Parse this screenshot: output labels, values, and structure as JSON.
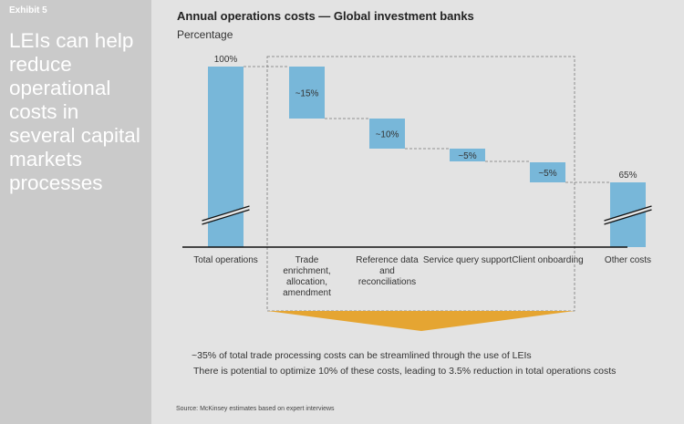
{
  "sidebar": {
    "exhibit": "Exhibit 5",
    "headline": "LEIs can help reduce operational costs in several capital markets processes"
  },
  "chart_data": {
    "type": "bar",
    "subtype": "waterfall",
    "title": "Annual operations costs — Global investment banks",
    "ylabel": "Percentage",
    "categories": [
      "Total operations",
      "Trade enrichment, allocation, amendment",
      "Reference data and reconciliations",
      "Service query support",
      "Client onboarding",
      "Other costs"
    ],
    "values": [
      100,
      -15,
      -10,
      -5,
      -5,
      65
    ],
    "data_labels": [
      "100%",
      "~15%",
      "~10%",
      "~5%",
      "~5%",
      "65%"
    ],
    "axis_break": true,
    "colors": {
      "bar": "#78b7d9",
      "bracket": "#e5a532"
    }
  },
  "notes": [
    "~35% of total trade processing costs can be streamlined through the use of LEIs",
    "There is potential to optimize 10% of these costs, leading to 3.5% reduction in total operations costs"
  ],
  "source": "Source: McKinsey estimates based on expert interviews"
}
